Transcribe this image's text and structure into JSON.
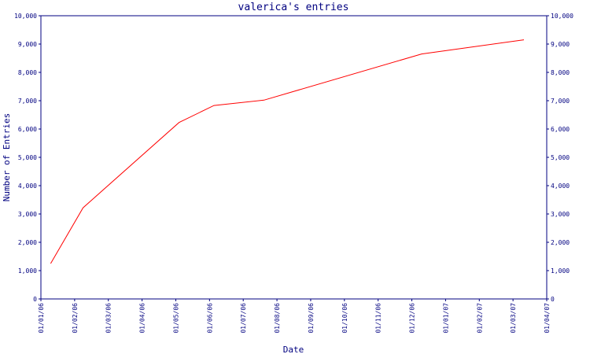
{
  "chart_data": {
    "type": "line",
    "title": "valerica's entries",
    "xlabel": "Date",
    "ylabel": "Number of Entries",
    "ylim": [
      0,
      10000
    ],
    "y_ticks": [
      "0",
      "1,000",
      "2,000",
      "3,000",
      "4,000",
      "5,000",
      "6,000",
      "7,000",
      "8,000",
      "9,000",
      "10,000"
    ],
    "x_ticks": [
      "01/01/06",
      "01/02/06",
      "01/03/06",
      "01/04/06",
      "01/05/06",
      "01/06/06",
      "01/07/06",
      "01/08/06",
      "01/09/06",
      "01/10/06",
      "01/11/06",
      "01/12/06",
      "01/01/07",
      "01/02/07",
      "01/03/07",
      "01/04/07"
    ],
    "grid": false,
    "series": [
      {
        "color": "#ff0000",
        "points": [
          {
            "x": "2006-01-10",
            "y": 1250
          },
          {
            "x": "2006-02-08",
            "y": 3220
          },
          {
            "x": "2006-05-04",
            "y": 6230
          },
          {
            "x": "2006-06-05",
            "y": 6830
          },
          {
            "x": "2006-07-20",
            "y": 7020
          },
          {
            "x": "2006-12-10",
            "y": 8650
          },
          {
            "x": "2007-03-11",
            "y": 9150
          }
        ]
      }
    ]
  }
}
